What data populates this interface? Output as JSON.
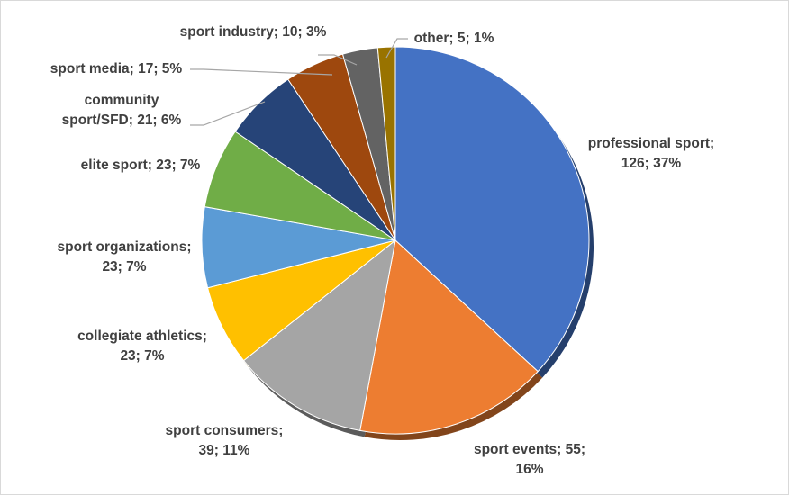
{
  "chart_data": {
    "type": "pie",
    "title": "",
    "slices": [
      {
        "label_lines": [
          "professional sport;",
          "126; 37%"
        ],
        "category": "professional sport",
        "value": 126,
        "percent": "37%",
        "color": "#4472C4"
      },
      {
        "label_lines": [
          "sport events; 55;",
          "16%"
        ],
        "category": "sport events",
        "value": 55,
        "percent": "16%",
        "color": "#ED7D31"
      },
      {
        "label_lines": [
          "sport consumers;",
          "39; 11%"
        ],
        "category": "sport consumers",
        "value": 39,
        "percent": "11%",
        "color": "#A5A5A5"
      },
      {
        "label_lines": [
          "collegiate athletics;",
          "23; 7%"
        ],
        "category": "collegiate athletics",
        "value": 23,
        "percent": "7%",
        "color": "#FFC000"
      },
      {
        "label_lines": [
          "sport organizations;",
          "23; 7%"
        ],
        "category": "sport organizations",
        "value": 23,
        "percent": "7%",
        "color": "#5B9BD5"
      },
      {
        "label_lines": [
          "elite sport; 23; 7%"
        ],
        "category": "elite sport",
        "value": 23,
        "percent": "7%",
        "color": "#70AD47"
      },
      {
        "label_lines": [
          "community",
          "sport/SFD; 21; 6%"
        ],
        "category": "community sport/SFD",
        "value": 21,
        "percent": "6%",
        "color": "#264478"
      },
      {
        "label_lines": [
          "sport media; 17; 5%"
        ],
        "category": "sport media",
        "value": 17,
        "percent": "5%",
        "color": "#9E480E"
      },
      {
        "label_lines": [
          "sport industry; 10; 3%"
        ],
        "category": "sport industry",
        "value": 10,
        "percent": "3%",
        "color": "#636363"
      },
      {
        "label_lines": [
          "other; 5; 1%"
        ],
        "category": "other",
        "value": 5,
        "percent": "1%",
        "color": "#997300"
      }
    ],
    "legend": "none",
    "style": "3d-effect pie with data labels and leader lines"
  }
}
